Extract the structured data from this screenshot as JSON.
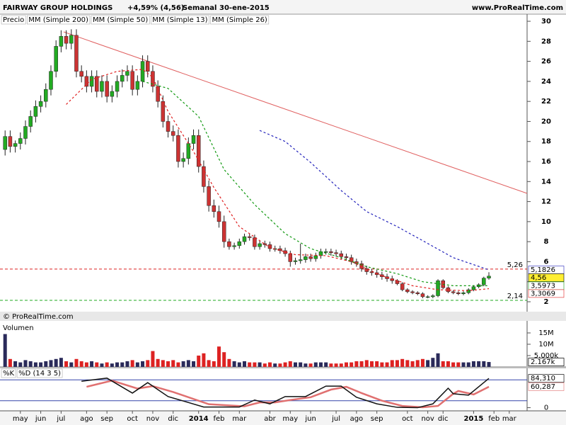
{
  "header": {
    "title": "FAIRWAY GROUP HOLDINGS",
    "change": "+4,59% (4,56)",
    "period": "Semanal",
    "date": "30-ene-2015",
    "site": "www.ProRealTime.com",
    "copyright": "© ProRealTime.com"
  },
  "chart_data": [
    {
      "type": "candlestick",
      "legend": [
        "Precio",
        "MM (Simple 200)"
      ],
      "up_color": "#22aa22",
      "down_color": "#cc3333",
      "xlim": [
        -1,
        102.5
      ],
      "xticks": [
        {
          "value": 3,
          "label": "may"
        },
        {
          "value": 7,
          "label": "jun"
        },
        {
          "value": 11,
          "label": "jul"
        },
        {
          "value": 16,
          "label": "ago"
        },
        {
          "value": 20,
          "label": "sep"
        },
        {
          "value": 25,
          "label": "oct"
        },
        {
          "value": 29,
          "label": "nov"
        },
        {
          "value": 33,
          "label": "dic"
        },
        {
          "value": 38,
          "label": "2014"
        },
        {
          "value": 42,
          "label": "feb"
        },
        {
          "value": 46,
          "label": "mar"
        },
        {
          "value": 52,
          "label": "abr"
        },
        {
          "value": 56,
          "label": "may"
        },
        {
          "value": 60,
          "label": "jun"
        },
        {
          "value": 65,
          "label": "jul"
        },
        {
          "value": 69,
          "label": "ago"
        },
        {
          "value": 73,
          "label": "sep"
        },
        {
          "value": 79,
          "label": "oct"
        },
        {
          "value": 83,
          "label": "nov"
        },
        {
          "value": 86,
          "label": "dic"
        },
        {
          "value": 92,
          "label": "2015"
        },
        {
          "value": 96,
          "label": "feb"
        },
        {
          "value": 99,
          "label": "mar"
        }
      ],
      "ylim": [
        1.01,
        30.71
      ],
      "yticks": [
        2,
        4,
        6,
        8,
        10,
        12,
        14,
        16,
        18,
        20,
        22,
        24,
        26,
        28,
        30
      ],
      "x": [
        0,
        1,
        2,
        3,
        4,
        5,
        6,
        7,
        8,
        9,
        10,
        11,
        12,
        13,
        14,
        15,
        16,
        17,
        18,
        19,
        20,
        21,
        22,
        23,
        24,
        25,
        26,
        27,
        28,
        29,
        30,
        31,
        32,
        33,
        34,
        35,
        36,
        37,
        38,
        39,
        40,
        41,
        42,
        43,
        44,
        45,
        46,
        47,
        48,
        49,
        50,
        51,
        52,
        53,
        54,
        55,
        56,
        57,
        58,
        59,
        60,
        61,
        62,
        63,
        64,
        65,
        66,
        67,
        68,
        69,
        70,
        71,
        72,
        73,
        74,
        75,
        76,
        77,
        78,
        79,
        80,
        81,
        82,
        83,
        84,
        85,
        86,
        87,
        88,
        89,
        90,
        91,
        92,
        93,
        94,
        95
      ],
      "open": [
        17.2,
        18.5,
        17.5,
        17.8,
        18.3,
        19.5,
        20.5,
        21.5,
        22,
        23.2,
        25,
        27.5,
        28.5,
        27.8,
        28.6,
        25,
        24.5,
        23.5,
        24.5,
        23,
        24,
        22.5,
        23,
        24,
        24.6,
        25,
        23.2,
        24,
        26,
        25,
        23.5,
        22,
        20,
        19,
        18.6,
        16,
        16.3,
        17.8,
        18.6,
        15.5,
        13.5,
        11.6,
        11,
        10,
        8,
        7.5,
        7.6,
        8,
        8.5,
        8.4,
        7.5,
        7.8,
        7.7,
        7.3,
        7.3,
        7.1,
        6.8,
        6,
        6.1,
        6.2,
        6.5,
        6.3,
        6.6,
        7,
        7,
        6.9,
        6.8,
        6.5,
        6.4,
        6,
        5.8,
        5.3,
        5,
        4.9,
        4.7,
        4.5,
        4.3,
        4.1,
        3.8,
        3.2,
        3.0,
        2.9,
        2.8,
        2.5,
        2.5,
        2.6,
        4.1,
        3.4,
        3.0,
        2.9,
        2.8,
        2.9,
        3.2,
        3.5,
        3.7,
        4.36
      ],
      "high": [
        19.1,
        19.1,
        18.1,
        18.9,
        20.1,
        21.1,
        22.1,
        22.6,
        23.8,
        25.6,
        28.1,
        29.1,
        29.1,
        29.2,
        29.2,
        25.6,
        25.1,
        25.1,
        25.1,
        24.6,
        24.6,
        23.6,
        24.6,
        25.2,
        25.6,
        25.6,
        24.6,
        26.6,
        26.6,
        25.6,
        24.1,
        22.6,
        20.6,
        19.6,
        19.2,
        16.9,
        18.4,
        19.2,
        19.2,
        16.1,
        14.1,
        12.2,
        11.6,
        10.6,
        8.3,
        7.9,
        8.3,
        8.8,
        8.8,
        8.7,
        8.1,
        8.1,
        8,
        7.6,
        7.6,
        7.4,
        7.1,
        6.4,
        7.8,
        6.8,
        6.8,
        6.9,
        7.3,
        7.3,
        7.3,
        7.2,
        7.1,
        6.8,
        6.7,
        6.3,
        6.1,
        5.6,
        5.3,
        5.2,
        5,
        4.8,
        4.6,
        4.25,
        3.95,
        3.35,
        3.15,
        3.05,
        2.95,
        2.65,
        2.75,
        4.25,
        4.25,
        3.55,
        3.15,
        3.05,
        3.05,
        3.35,
        3.65,
        3.85,
        4.5,
        4.95
      ],
      "low": [
        16.6,
        16.9,
        16.9,
        17.2,
        17.7,
        18.9,
        19.9,
        20.9,
        21.4,
        22.6,
        24.4,
        26.9,
        27.2,
        27.2,
        24.4,
        23.9,
        22.9,
        22.9,
        22.4,
        22.4,
        21.9,
        21.9,
        22.4,
        23.4,
        24,
        22.6,
        22.6,
        23.4,
        24.4,
        22.9,
        21.4,
        19.4,
        18.4,
        18,
        15.4,
        15.4,
        15.7,
        17.2,
        14.9,
        12.9,
        11,
        10.4,
        9.4,
        7.4,
        7.2,
        7.2,
        7.3,
        7.7,
        8.1,
        7.2,
        7.2,
        7.4,
        7,
        7,
        6.8,
        6.5,
        5.5,
        5.7,
        5.8,
        5.9,
        6,
        6,
        6.3,
        6.7,
        6.6,
        6.5,
        6.2,
        6.1,
        5.7,
        5.5,
        5,
        4.7,
        4.6,
        4.4,
        4.2,
        4,
        3.8,
        3.65,
        3.05,
        2.85,
        2.75,
        2.65,
        2.35,
        2.35,
        2.35,
        2.45,
        3.25,
        2.85,
        2.75,
        2.65,
        2.65,
        2.75,
        3.05,
        3.35,
        3.55,
        4.2
      ],
      "close": [
        18.5,
        17.5,
        17.8,
        18.3,
        19.5,
        20.5,
        21.5,
        22,
        23.2,
        25,
        27.5,
        28.5,
        27.8,
        28.6,
        25,
        24.5,
        23.5,
        24.5,
        23,
        24,
        22.5,
        23,
        24,
        24.6,
        25,
        23.2,
        24,
        26,
        25,
        23.5,
        22,
        20,
        19,
        18.6,
        16,
        16.3,
        17.8,
        18.6,
        15.5,
        13.5,
        11.6,
        11,
        10,
        8,
        7.5,
        7.6,
        8,
        8.5,
        8.4,
        7.5,
        7.8,
        7.7,
        7.3,
        7.3,
        7.1,
        6.8,
        6,
        6.1,
        6.2,
        6.5,
        6.3,
        6.6,
        7,
        7,
        6.9,
        6.8,
        6.5,
        6.4,
        6,
        5.8,
        5.3,
        5,
        4.9,
        4.7,
        4.5,
        4.3,
        4.1,
        3.8,
        3.2,
        3.0,
        2.9,
        2.8,
        2.5,
        2.5,
        2.6,
        4.1,
        3.4,
        3.0,
        2.9,
        2.8,
        2.9,
        3.2,
        3.5,
        3.7,
        4.36,
        4.56
      ],
      "last_label": {
        "value": 4.56,
        "label": "4,56"
      },
      "series": [
        {
          "name": "MM (Simple 50)",
          "color": "#2222bb",
          "dashed": true,
          "x": [
            50,
            55,
            60,
            66,
            71,
            77,
            82,
            88,
            95
          ],
          "values": [
            19.1,
            18,
            15.9,
            13.1,
            11,
            9.5,
            8.1,
            6.4,
            5.1826
          ],
          "last_label": {
            "value": 5.1826,
            "label": "5,1826"
          }
        },
        {
          "name": "MM (Simple 13)",
          "color": "#e02020",
          "dashed": true,
          "x": [
            12,
            17,
            22,
            27,
            29,
            32,
            37,
            41,
            46,
            52,
            57,
            63,
            68,
            74,
            80,
            85,
            91,
            95
          ],
          "values": [
            21.7,
            24.2,
            25,
            25.2,
            24.4,
            21,
            17,
            13.4,
            9.5,
            7.4,
            6.7,
            6.6,
            6,
            4.6,
            3.6,
            3.2,
            3.1,
            3.3069
          ],
          "last_label": {
            "value": 3.3069,
            "label": "3,3069"
          }
        },
        {
          "name": "MM (Simple 26)",
          "color": "#119911",
          "dashed": true,
          "x": [
            27,
            32,
            38,
            43,
            49,
            55,
            60,
            66,
            71,
            77,
            82,
            88,
            95
          ],
          "values": [
            24,
            23.3,
            20.5,
            15.2,
            11.7,
            8.8,
            7.3,
            6.4,
            5.5,
            4.8,
            4,
            3.6,
            3.5973
          ],
          "last_label": {
            "value": 3.5973,
            "label": "3,5973"
          }
        }
      ],
      "trendlines": [
        {
          "color": "#e06060",
          "x": [
            11.5,
            102.5
          ],
          "values": [
            28.94,
            12.82
          ]
        }
      ],
      "levels": [
        {
          "value": 5.26,
          "label": "5,26",
          "color": "#dd2222"
        },
        {
          "value": 2.14,
          "label": "2,14",
          "color": "#22aa22"
        }
      ]
    },
    {
      "type": "bar",
      "title": "Volumen",
      "up_color": "#2a2a5a",
      "down_color": "#dd2222",
      "ylim": [
        0,
        18.75
      ],
      "yticks": [
        {
          "value": 15,
          "label": "15M"
        },
        {
          "value": 10,
          "label": "10M"
        },
        {
          "value": 5,
          "label": "5,000k"
        }
      ],
      "values": [
        14.5,
        3.5,
        2.5,
        2,
        3,
        2.5,
        2,
        2,
        2.5,
        3,
        3.5,
        4,
        2.5,
        2,
        3.5,
        2.5,
        2,
        2.5,
        2,
        1.5,
        2,
        1.5,
        2,
        2,
        2.5,
        3,
        2,
        2.5,
        3,
        7,
        3.5,
        3,
        2.5,
        3,
        2,
        2.5,
        3,
        2.5,
        5,
        6,
        3,
        2.5,
        9,
        6.5,
        3.5,
        2.5,
        2,
        2.5,
        2,
        2,
        2,
        1.5,
        2,
        1.5,
        1.5,
        2,
        2.5,
        2,
        2,
        1.5,
        1.5,
        2,
        2,
        2,
        1.5,
        1.5,
        1.5,
        2,
        2,
        2.5,
        2.5,
        3,
        2.5,
        2.5,
        2,
        2,
        3,
        3,
        3.5,
        3,
        2.5,
        3,
        3.5,
        3,
        4,
        6,
        2.5,
        2.5,
        2,
        2,
        2,
        2,
        2.5,
        2.5,
        2.5,
        2.167
      ],
      "last_label": {
        "value": 2.167,
        "label": "2.167k"
      }
    },
    {
      "type": "line",
      "ylim": [
        -5,
        105
      ],
      "yticks": [
        0
      ],
      "levels": [
        80,
        20
      ],
      "series": [
        {
          "name": "%K",
          "color": "#111111",
          "x": [
            15,
            20,
            25,
            28,
            32,
            39,
            46,
            49,
            52,
            55,
            59,
            63,
            66,
            69,
            73,
            77,
            81,
            84,
            87,
            88,
            91,
            95
          ],
          "values": [
            76,
            85,
            42,
            72,
            32,
            2,
            2,
            22,
            11,
            32,
            32,
            62,
            62,
            30,
            11,
            1,
            0,
            11,
            56,
            40,
            36,
            84.31
          ],
          "last_label": {
            "value": 84.31,
            "label": "84,310"
          }
        },
        {
          "name": "%D (14 3 5)",
          "color": "#e07070",
          "x": [
            16,
            21,
            26,
            29,
            33,
            40,
            47,
            50,
            53,
            56,
            60,
            64,
            67,
            70,
            74,
            78,
            82,
            85,
            88,
            89,
            92,
            95
          ],
          "values": [
            60,
            78,
            55,
            62,
            45,
            10,
            4,
            15,
            15,
            22,
            30,
            52,
            60,
            42,
            20,
            5,
            1,
            5,
            40,
            48,
            38,
            60.287
          ],
          "last_label": {
            "value": 60.287,
            "label": "60,287"
          }
        }
      ]
    }
  ]
}
